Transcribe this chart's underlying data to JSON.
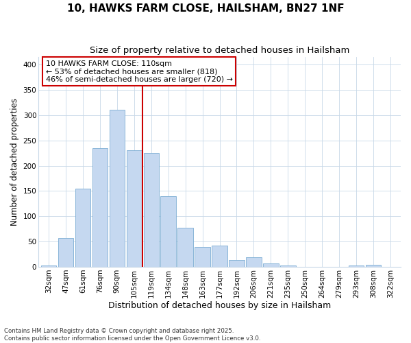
{
  "title": "10, HAWKS FARM CLOSE, HAILSHAM, BN27 1NF",
  "subtitle": "Size of property relative to detached houses in Hailsham",
  "xlabel": "Distribution of detached houses by size in Hailsham",
  "ylabel": "Number of detached properties",
  "categories": [
    "32sqm",
    "47sqm",
    "61sqm",
    "76sqm",
    "90sqm",
    "105sqm",
    "119sqm",
    "134sqm",
    "148sqm",
    "163sqm",
    "177sqm",
    "192sqm",
    "206sqm",
    "221sqm",
    "235sqm",
    "250sqm",
    "264sqm",
    "279sqm",
    "293sqm",
    "308sqm",
    "322sqm"
  ],
  "values": [
    3,
    57,
    155,
    235,
    310,
    230,
    225,
    140,
    78,
    40,
    42,
    13,
    19,
    7,
    3,
    0,
    0,
    0,
    3,
    4,
    0
  ],
  "bar_color": "#c5d8f0",
  "bar_edge_color": "#7daed4",
  "background_color": "#ffffff",
  "plot_bg_color": "#ffffff",
  "grid_color": "#c8d8e8",
  "vline_x": 5.5,
  "vline_color": "#cc0000",
  "annotation_text": "10 HAWKS FARM CLOSE: 110sqm\n← 53% of detached houses are smaller (818)\n46% of semi-detached houses are larger (720) →",
  "annotation_box_color": "#ffffff",
  "annotation_box_edge": "#cc0000",
  "annotation_fontsize": 8.0,
  "ylim": [
    0,
    415
  ],
  "yticks": [
    0,
    50,
    100,
    150,
    200,
    250,
    300,
    350,
    400
  ],
  "footer": "Contains HM Land Registry data © Crown copyright and database right 2025.\nContains public sector information licensed under the Open Government Licence v3.0.",
  "title_fontsize": 11,
  "subtitle_fontsize": 9.5,
  "xlabel_fontsize": 9,
  "ylabel_fontsize": 8.5,
  "tick_fontsize": 7.5
}
